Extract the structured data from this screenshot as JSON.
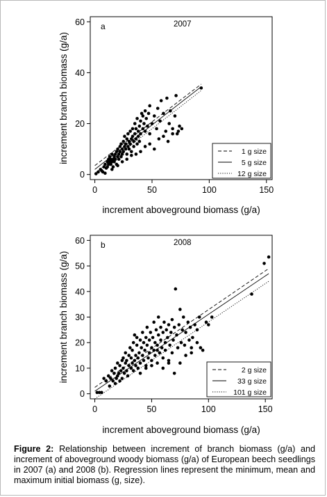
{
  "chart_data": [
    {
      "type": "scatter",
      "panel_label": "a",
      "year": "2007",
      "xlabel": "increment aboveground biomass (g/a)",
      "ylabel": "increment branch biomass (g/a)",
      "xlim": [
        -4,
        155
      ],
      "ylim": [
        -2,
        62
      ],
      "xticks": [
        0,
        50,
        100,
        150
      ],
      "yticks": [
        0,
        20,
        40,
        60
      ],
      "grid": false,
      "legend_position": "bottom-right",
      "points": [
        [
          1,
          0.3
        ],
        [
          3,
          1
        ],
        [
          5,
          2
        ],
        [
          6,
          1.5
        ],
        [
          7,
          1
        ],
        [
          8,
          3
        ],
        [
          9,
          4
        ],
        [
          10,
          2.5
        ],
        [
          11,
          5
        ],
        [
          11,
          3
        ],
        [
          12,
          4
        ],
        [
          12,
          6
        ],
        [
          13,
          5
        ],
        [
          13,
          7
        ],
        [
          14,
          4
        ],
        [
          14,
          6
        ],
        [
          15,
          5
        ],
        [
          15,
          8
        ],
        [
          16,
          6
        ],
        [
          16,
          3
        ],
        [
          17,
          7
        ],
        [
          17,
          5
        ],
        [
          18,
          8
        ],
        [
          18,
          6
        ],
        [
          19,
          9
        ],
        [
          19,
          4
        ],
        [
          20,
          7
        ],
        [
          20,
          10
        ],
        [
          21,
          8
        ],
        [
          21,
          6
        ],
        [
          22,
          11
        ],
        [
          22,
          9
        ],
        [
          23,
          7
        ],
        [
          23,
          12
        ],
        [
          24,
          10
        ],
        [
          24,
          8
        ],
        [
          25,
          13
        ],
        [
          25,
          9
        ],
        [
          26,
          11
        ],
        [
          26,
          15
        ],
        [
          27,
          10
        ],
        [
          27,
          12
        ],
        [
          28,
          14
        ],
        [
          28,
          8
        ],
        [
          29,
          16
        ],
        [
          29,
          11
        ],
        [
          30,
          13
        ],
        [
          30,
          10
        ],
        [
          31,
          17
        ],
        [
          31,
          12
        ],
        [
          32,
          14
        ],
        [
          32,
          9
        ],
        [
          33,
          15
        ],
        [
          33,
          18
        ],
        [
          34,
          13
        ],
        [
          34,
          11
        ],
        [
          35,
          16
        ],
        [
          35,
          20
        ],
        [
          36,
          14
        ],
        [
          36,
          18
        ],
        [
          37,
          12
        ],
        [
          37,
          22
        ],
        [
          38,
          17
        ],
        [
          38,
          15
        ],
        [
          39,
          19
        ],
        [
          39,
          13
        ],
        [
          40,
          21
        ],
        [
          40,
          16
        ],
        [
          41,
          24
        ],
        [
          42,
          18
        ],
        [
          42,
          23
        ],
        [
          43,
          20
        ],
        [
          44,
          17
        ],
        [
          44,
          25
        ],
        [
          45,
          22
        ],
        [
          46,
          19
        ],
        [
          47,
          24
        ],
        [
          48,
          16
        ],
        [
          48,
          27
        ],
        [
          50,
          20
        ],
        [
          52,
          23
        ],
        [
          54,
          18
        ],
        [
          55,
          26
        ],
        [
          57,
          21
        ],
        [
          58,
          29
        ],
        [
          60,
          24
        ],
        [
          62,
          17
        ],
        [
          63,
          30
        ],
        [
          65,
          20
        ],
        [
          66,
          25
        ],
        [
          68,
          16
        ],
        [
          70,
          23
        ],
        [
          71,
          31
        ],
        [
          73,
          17
        ],
        [
          74,
          19
        ],
        [
          76,
          18
        ],
        [
          93,
          34
        ],
        [
          9,
          0.5
        ],
        [
          15,
          2
        ],
        [
          20,
          3.5
        ],
        [
          24,
          5
        ],
        [
          28,
          6
        ],
        [
          32,
          7.5
        ],
        [
          36,
          8
        ],
        [
          40,
          9
        ],
        [
          44,
          11
        ],
        [
          48,
          12
        ],
        [
          52,
          10
        ],
        [
          56,
          14
        ],
        [
          60,
          15
        ],
        [
          64,
          13
        ],
        [
          68,
          18
        ],
        [
          72,
          16
        ]
      ],
      "series": [
        {
          "name": "1 g size",
          "style": "dashed",
          "x": [
            0,
            93
          ],
          "y": [
            3.5,
            35.5
          ]
        },
        {
          "name": "5 g size",
          "style": "solid",
          "x": [
            0,
            93
          ],
          "y": [
            2.0,
            34.5
          ]
        },
        {
          "name": "12 g size",
          "style": "dotted",
          "x": [
            0,
            93
          ],
          "y": [
            0.5,
            33.0
          ]
        }
      ]
    },
    {
      "type": "scatter",
      "panel_label": "b",
      "year": "2008",
      "xlabel": "increment aboveground biomass (g/a)",
      "ylabel": "increment branch biomass (g/a)",
      "xlim": [
        -4,
        156
      ],
      "ylim": [
        -2,
        62
      ],
      "xticks": [
        0,
        50,
        100,
        150
      ],
      "yticks": [
        0,
        10,
        20,
        30,
        40,
        50,
        60
      ],
      "grid": false,
      "legend_position": "bottom-right",
      "points": [
        [
          2,
          0.5
        ],
        [
          4,
          0.5
        ],
        [
          6,
          0.5
        ],
        [
          8,
          6
        ],
        [
          10,
          5
        ],
        [
          12,
          7
        ],
        [
          13,
          3
        ],
        [
          14,
          6
        ],
        [
          15,
          9
        ],
        [
          16,
          5
        ],
        [
          17,
          8
        ],
        [
          18,
          4
        ],
        [
          18,
          10
        ],
        [
          19,
          6
        ],
        [
          20,
          12
        ],
        [
          20,
          7
        ],
        [
          21,
          8
        ],
        [
          22,
          11
        ],
        [
          22,
          5
        ],
        [
          23,
          9
        ],
        [
          24,
          13
        ],
        [
          24,
          6
        ],
        [
          25,
          10
        ],
        [
          25,
          14
        ],
        [
          26,
          8
        ],
        [
          27,
          12
        ],
        [
          27,
          16
        ],
        [
          28,
          9
        ],
        [
          28,
          13
        ],
        [
          29,
          7
        ],
        [
          30,
          11
        ],
        [
          30,
          15
        ],
        [
          31,
          18
        ],
        [
          32,
          10
        ],
        [
          32,
          14
        ],
        [
          33,
          12
        ],
        [
          33,
          17
        ],
        [
          34,
          9
        ],
        [
          34,
          20
        ],
        [
          35,
          13
        ],
        [
          36,
          15
        ],
        [
          36,
          11
        ],
        [
          37,
          19
        ],
        [
          37,
          22
        ],
        [
          38,
          14
        ],
        [
          38,
          10
        ],
        [
          39,
          16
        ],
        [
          40,
          21
        ],
        [
          40,
          12
        ],
        [
          41,
          18
        ],
        [
          42,
          24
        ],
        [
          42,
          15
        ],
        [
          43,
          13
        ],
        [
          43,
          20
        ],
        [
          44,
          17
        ],
        [
          45,
          22
        ],
        [
          45,
          11
        ],
        [
          46,
          19
        ],
        [
          46,
          26
        ],
        [
          47,
          14
        ],
        [
          48,
          21
        ],
        [
          48,
          16
        ],
        [
          49,
          24
        ],
        [
          50,
          18
        ],
        [
          50,
          13
        ],
        [
          51,
          22
        ],
        [
          52,
          28
        ],
        [
          52,
          17
        ],
        [
          53,
          15
        ],
        [
          53,
          20
        ],
        [
          54,
          25
        ],
        [
          55,
          19
        ],
        [
          56,
          23
        ],
        [
          56,
          30
        ],
        [
          57,
          16
        ],
        [
          58,
          21
        ],
        [
          58,
          26
        ],
        [
          59,
          18
        ],
        [
          60,
          24
        ],
        [
          60,
          14
        ],
        [
          61,
          28
        ],
        [
          62,
          20
        ],
        [
          62,
          17
        ],
        [
          63,
          25
        ],
        [
          64,
          22
        ],
        [
          65,
          27
        ],
        [
          65,
          12
        ],
        [
          66,
          19
        ],
        [
          67,
          24
        ],
        [
          68,
          29
        ],
        [
          68,
          16
        ],
        [
          69,
          21
        ],
        [
          70,
          26
        ],
        [
          70,
          8
        ],
        [
          71,
          41
        ],
        [
          72,
          23
        ],
        [
          73,
          18
        ],
        [
          74,
          27
        ],
        [
          75,
          33
        ],
        [
          76,
          20
        ],
        [
          77,
          25
        ],
        [
          78,
          30
        ],
        [
          79,
          19
        ],
        [
          80,
          24
        ],
        [
          82,
          28
        ],
        [
          83,
          21
        ],
        [
          84,
          26
        ],
        [
          85,
          18
        ],
        [
          86,
          22
        ],
        [
          88,
          27
        ],
        [
          90,
          25
        ],
        [
          92,
          30
        ],
        [
          93,
          18
        ],
        [
          95,
          17
        ],
        [
          98,
          28
        ],
        [
          100,
          27
        ],
        [
          103,
          30
        ],
        [
          138,
          39
        ],
        [
          149,
          51
        ],
        [
          153,
          53.5
        ],
        [
          40,
          8
        ],
        [
          45,
          10
        ],
        [
          50,
          11
        ],
        [
          55,
          12
        ],
        [
          60,
          10
        ],
        [
          65,
          13
        ],
        [
          75,
          12
        ],
        [
          80,
          15
        ],
        [
          85,
          16
        ],
        [
          35,
          23
        ],
        [
          55,
          17
        ],
        [
          90,
          20
        ]
      ],
      "series": [
        {
          "name": "2 g size",
          "style": "dashed",
          "x": [
            0,
            153
          ],
          "y": [
            2.5,
            49.0
          ]
        },
        {
          "name": "33 g size",
          "style": "solid",
          "x": [
            0,
            153
          ],
          "y": [
            1.0,
            47.0
          ]
        },
        {
          "name": "101 g size",
          "style": "dotted",
          "x": [
            0,
            153
          ],
          "y": [
            -2.0,
            44.0
          ]
        }
      ]
    }
  ],
  "caption": {
    "label": "Figure 2:",
    "text": " Relationship between increment of branch biomass (g/a) and increment of aboveground woody biomass (g/a) of European beech seedlings in 2007 (a) and 2008 (b). Regression lines represent the minimum, mean and maximum initial biomass (g, size)."
  }
}
